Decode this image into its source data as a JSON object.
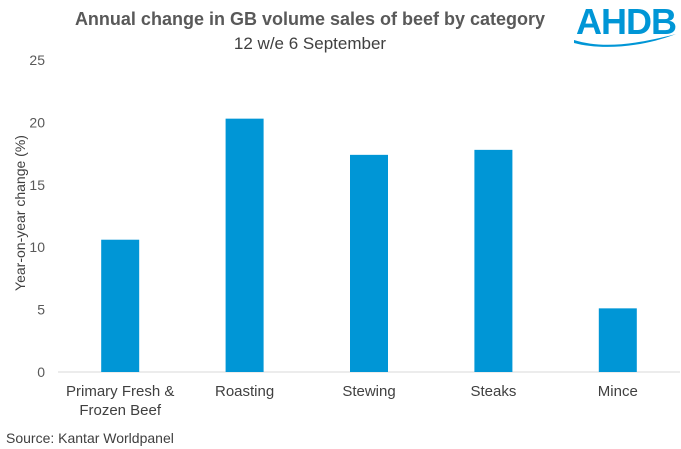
{
  "brand": {
    "logo_text": "AHDB",
    "color": "#0096d6"
  },
  "source": "Source: Kantar Worldpanel",
  "chart_data": {
    "type": "bar",
    "title": "Annual change in GB volume sales of beef by category",
    "subtitle": "12 w/e 6 September",
    "xlabel": "",
    "ylabel": "Year-on-year change (%)",
    "categories": [
      "Primary Fresh & Frozen Beef",
      "Roasting",
      "Stewing",
      "Steaks",
      "Mince"
    ],
    "values": [
      10.6,
      20.3,
      17.4,
      17.8,
      5.1
    ],
    "ylim": [
      0,
      25
    ],
    "yticks": [
      0,
      5,
      10,
      15,
      20,
      25
    ],
    "grid": false,
    "bar_color": "#0096d6"
  }
}
